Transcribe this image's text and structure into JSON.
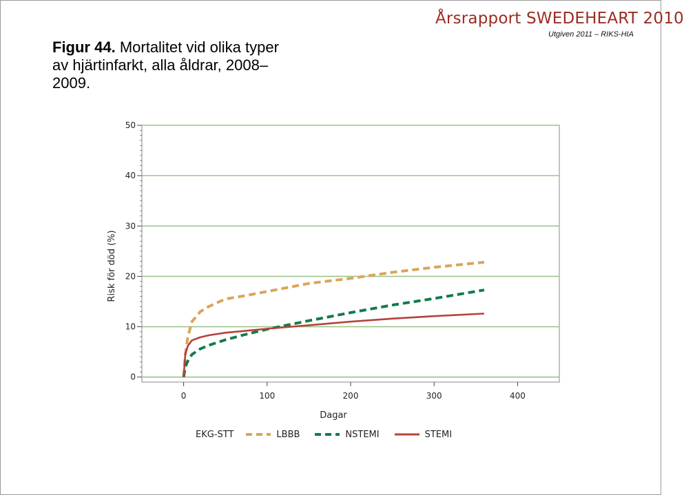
{
  "figure": {
    "label": "Figur 44.",
    "text": "Mortalitet vid olika typer av hjärtinfarkt, alla åldrar, 2008–2009."
  },
  "header": {
    "brand": "Årsrapport SWEDEHEART",
    "year": "2010",
    "subtitle": "Utgiven 2011 – RIKS-HIA"
  },
  "colors": {
    "brand": "#9c2b22",
    "grid": "#9bc48a",
    "LBBB": "#d9a55a",
    "NSTEMI": "#137a4c",
    "STEMI": "#b6413a"
  },
  "chart_data": {
    "type": "line",
    "title": "",
    "xlabel": "Dagar",
    "ylabel": "Risk för död (%)",
    "xlim": [
      -50,
      450
    ],
    "ylim": [
      -1,
      50
    ],
    "xticks": [
      0,
      100,
      200,
      300,
      400
    ],
    "yticks": [
      0,
      10,
      20,
      30,
      40,
      50
    ],
    "grid": "horizontal",
    "legend": {
      "title": "EKG-STT",
      "placement": "bottom"
    },
    "series": [
      {
        "name": "LBBB",
        "style": "dashed",
        "x": [
          0,
          2,
          5,
          10,
          20,
          30,
          50,
          75,
          100,
          150,
          200,
          250,
          300,
          360
        ],
        "y": [
          0,
          4.5,
          8.0,
          11.0,
          13.0,
          14.0,
          15.5,
          16.2,
          17.0,
          18.6,
          19.6,
          20.8,
          21.8,
          22.8
        ]
      },
      {
        "name": "NSTEMI",
        "style": "dashed",
        "x": [
          0,
          2,
          5,
          10,
          20,
          30,
          50,
          75,
          100,
          150,
          200,
          250,
          300,
          360
        ],
        "y": [
          0,
          2.0,
          3.2,
          4.5,
          5.6,
          6.3,
          7.4,
          8.5,
          9.5,
          11.2,
          12.8,
          14.3,
          15.6,
          17.3
        ]
      },
      {
        "name": "STEMI",
        "style": "solid",
        "x": [
          0,
          2,
          5,
          10,
          20,
          30,
          50,
          75,
          100,
          150,
          200,
          250,
          300,
          360
        ],
        "y": [
          0,
          4.5,
          6.2,
          7.3,
          7.9,
          8.3,
          8.8,
          9.2,
          9.6,
          10.3,
          11.0,
          11.6,
          12.1,
          12.6
        ]
      }
    ]
  }
}
